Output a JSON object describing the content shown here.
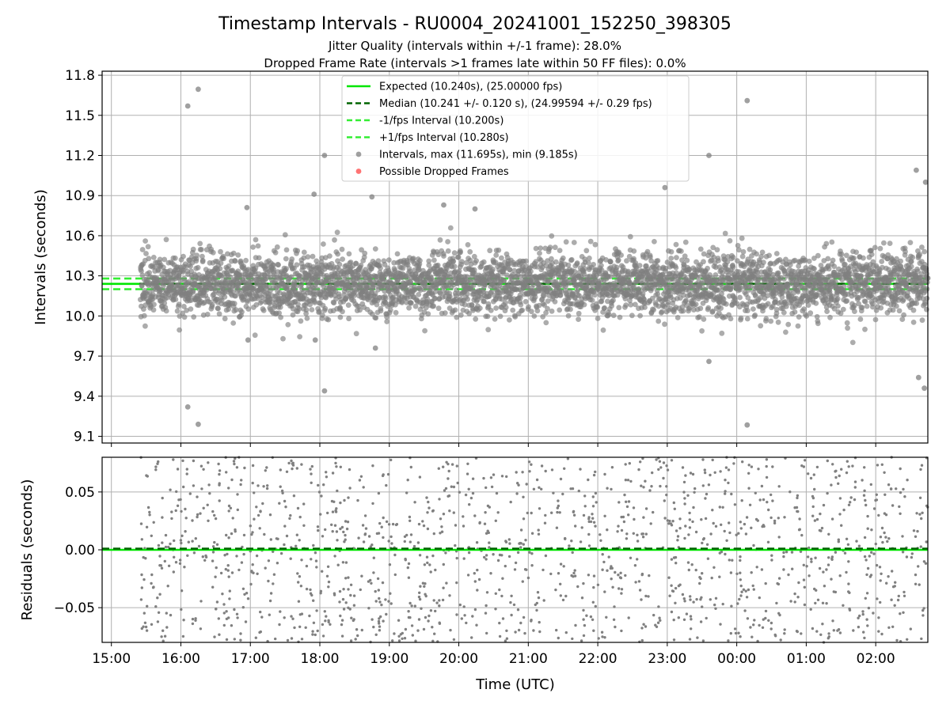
{
  "figure": {
    "title": "Timestamp Intervals - RU0004_20241001_152250_398305",
    "subtitle_1": "Jitter Quality (intervals within +/-1 frame): 28.0%",
    "subtitle_2": "Dropped Frame Rate (intervals >1 frames late within 50 FF files): 0.0%"
  },
  "colors": {
    "expected": "#00e600",
    "median": "#006400",
    "interval_band": "#33ee33",
    "points": "#808080",
    "dropped": "#ff4444",
    "grid": "#b0b0b0"
  },
  "chart_data": [
    {
      "type": "scatter",
      "ylabel": "Intervals (seconds)",
      "xlabel": "",
      "ylim": [
        9.05,
        11.83
      ],
      "x_range": [
        "14:52",
        "02:45"
      ],
      "x_ticks": [
        "15:00",
        "16:00",
        "17:00",
        "18:00",
        "19:00",
        "20:00",
        "21:00",
        "22:00",
        "23:00",
        "00:00",
        "01:00",
        "02:00"
      ],
      "y_ticks": [
        "9.1",
        "9.4",
        "9.7",
        "10.0",
        "10.3",
        "10.6",
        "10.9",
        "11.2",
        "11.5",
        "11.8"
      ],
      "grid": true,
      "legend_position": "upper center",
      "legend": [
        {
          "label": "Expected (10.240s), (25.00000 fps)",
          "style": "solid-line",
          "color": "#00e600"
        },
        {
          "label": "Median (10.241 +/- 0.120 s), (24.99594 +/- 0.29 fps)",
          "style": "dashed-line",
          "color": "#006400"
        },
        {
          "label": "-1/fps Interval (10.200s)",
          "style": "dashed-line",
          "color": "#33ee33"
        },
        {
          "label": "+1/fps Interval (10.280s)",
          "style": "dashed-line",
          "color": "#33ee33"
        },
        {
          "label": "Intervals, max (11.695s), min (9.185s)",
          "style": "marker",
          "color": "#808080"
        },
        {
          "label": "Possible Dropped Frames",
          "style": "marker",
          "color": "#ff4444"
        }
      ],
      "series": [
        {
          "name": "Expected",
          "kind": "hline",
          "y": 10.24
        },
        {
          "name": "Median",
          "kind": "hline",
          "y": 10.241
        },
        {
          "name": "-1/fps Interval",
          "kind": "hline",
          "y": 10.2
        },
        {
          "name": "+1/fps Interval",
          "kind": "hline",
          "y": 10.28
        },
        {
          "name": "Intervals",
          "kind": "scatter",
          "x_start": "15:25",
          "x_end": "02:45",
          "count": 4000,
          "center": 10.24,
          "spread": 0.12,
          "max": 11.695,
          "min": 9.185,
          "outliers": [
            {
              "x": "16:06",
              "y": 11.57
            },
            {
              "x": "16:15",
              "y": 11.695
            },
            {
              "x": "18:04",
              "y": 11.2
            },
            {
              "x": "18:45",
              "y": 10.89
            },
            {
              "x": "17:55",
              "y": 10.91
            },
            {
              "x": "16:06",
              "y": 9.32
            },
            {
              "x": "16:15",
              "y": 9.19
            },
            {
              "x": "18:04",
              "y": 9.44
            },
            {
              "x": "17:56",
              "y": 9.82
            },
            {
              "x": "16:58",
              "y": 9.82
            },
            {
              "x": "18:48",
              "y": 9.76
            },
            {
              "x": "00:09",
              "y": 11.61
            },
            {
              "x": "00:09",
              "y": 9.185
            },
            {
              "x": "23:36",
              "y": 11.2
            },
            {
              "x": "22:58",
              "y": 10.96
            },
            {
              "x": "23:36",
              "y": 9.66
            },
            {
              "x": "02:35",
              "y": 11.09
            },
            {
              "x": "02:43",
              "y": 11.0
            },
            {
              "x": "02:37",
              "y": 9.54
            },
            {
              "x": "02:42",
              "y": 9.46
            },
            {
              "x": "20:14",
              "y": 10.8
            },
            {
              "x": "16:57",
              "y": 10.81
            },
            {
              "x": "19:47",
              "y": 10.83
            }
          ]
        },
        {
          "name": "Possible Dropped Frames",
          "kind": "scatter",
          "count": 0
        }
      ]
    },
    {
      "type": "scatter",
      "ylabel": "Residuals (seconds)",
      "xlabel": "Time (UTC)",
      "ylim": [
        -0.08,
        0.08
      ],
      "x_range": [
        "14:52",
        "02:45"
      ],
      "x_ticks": [
        "15:00",
        "16:00",
        "17:00",
        "18:00",
        "19:00",
        "20:00",
        "21:00",
        "22:00",
        "23:00",
        "00:00",
        "01:00",
        "02:00"
      ],
      "y_ticks": [
        "−0.05",
        "0.00",
        "0.05"
      ],
      "grid": true,
      "series": [
        {
          "name": "Expected",
          "kind": "hline",
          "y": 0.0
        },
        {
          "name": "Median",
          "kind": "hline",
          "y": 0.001
        },
        {
          "name": "Residuals",
          "kind": "scatter",
          "x_start": "15:25",
          "x_end": "02:45",
          "count": 1500,
          "distribution": "uniform",
          "range": [
            -0.08,
            0.08
          ]
        }
      ]
    }
  ]
}
